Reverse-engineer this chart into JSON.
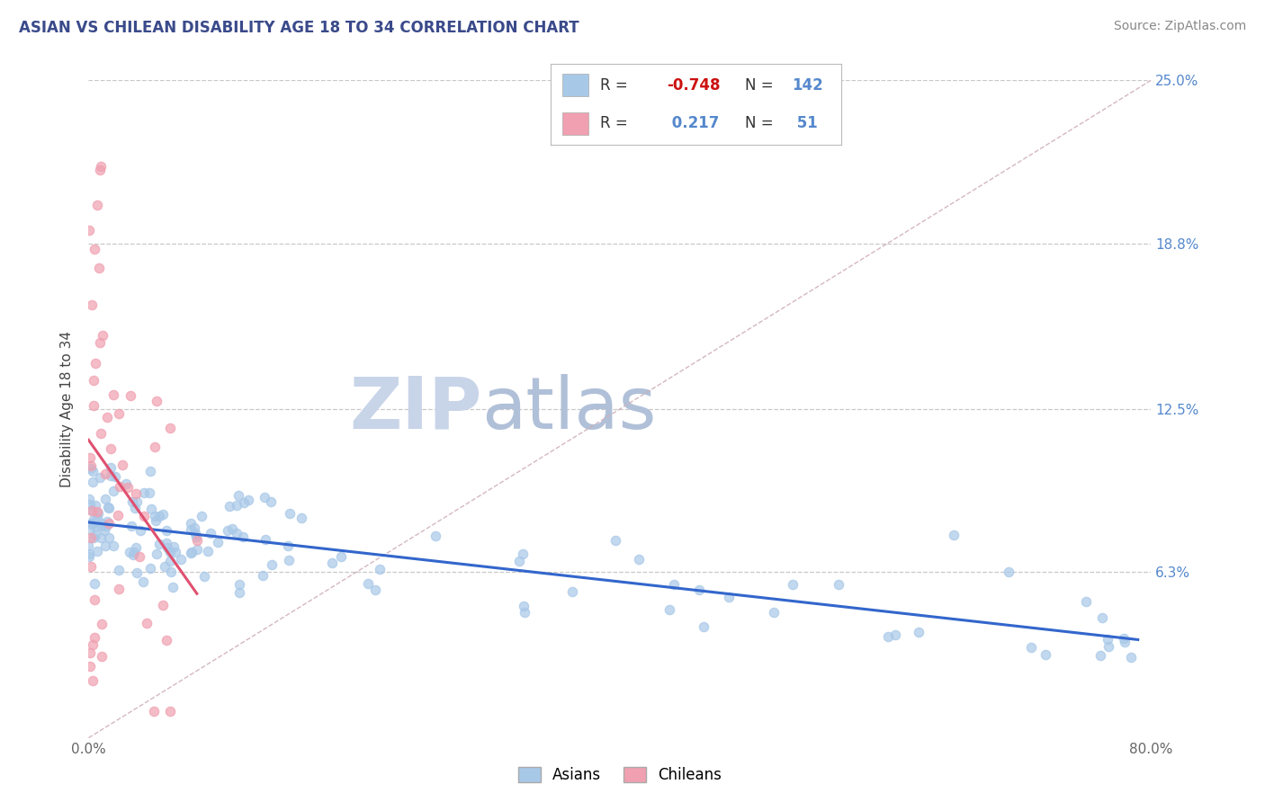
{
  "title": "ASIAN VS CHILEAN DISABILITY AGE 18 TO 34 CORRELATION CHART",
  "source": "Source: ZipAtlas.com",
  "ylabel": "Disability Age 18 to 34",
  "xlim": [
    0.0,
    0.8
  ],
  "ylim": [
    0.0,
    0.25
  ],
  "ytick_vals": [
    0.0,
    0.063,
    0.125,
    0.188,
    0.25
  ],
  "ytick_labels": [
    "",
    "6.3%",
    "12.5%",
    "18.8%",
    "25.0%"
  ],
  "bg_color": "#ffffff",
  "grid_color": "#c8c8c8",
  "asian_color": "#a8c8e8",
  "chilean_color": "#f0a0b0",
  "asian_line_color": "#3366cc",
  "chilean_line_color": "#e05070",
  "diag_line_color": "#d0b0b8",
  "tick_color": "#5588cc",
  "watermark_zip_color": "#c8d4e8",
  "watermark_atlas_color": "#b0c0d8",
  "asian_R": -0.748,
  "asian_N": 142,
  "chilean_R": 0.217,
  "chilean_N": 51,
  "title_color": "#3a4a8a",
  "source_color": "#888888",
  "ylabel_color": "#444444"
}
